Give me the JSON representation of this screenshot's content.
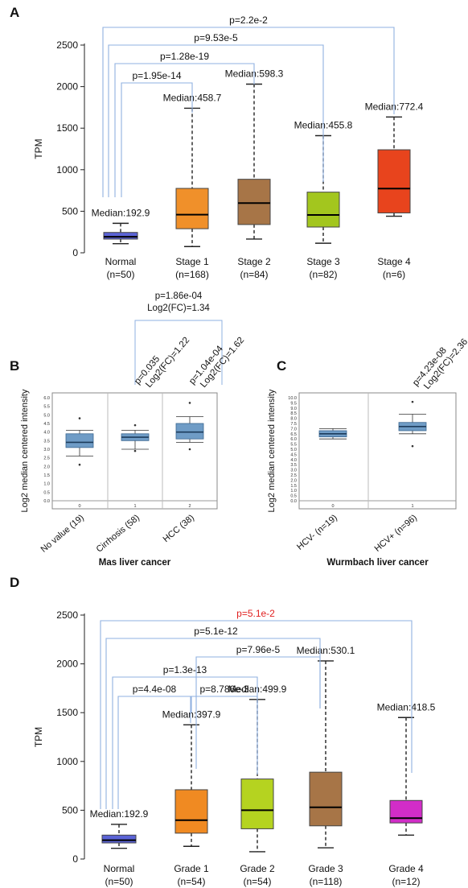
{
  "panels": {
    "A": {
      "letter": "A",
      "ylabel": "TPM",
      "yticks": [
        0,
        500,
        1000,
        1500,
        2000,
        2500
      ],
      "ylim": [
        0,
        2500
      ],
      "boxes": [
        {
          "label": "Normal",
          "n": "(n=50)",
          "median_text": "Median:192.9",
          "min": 110,
          "q1": 165,
          "median": 192.9,
          "q3": 245,
          "max": 355,
          "color": "#5b63d6"
        },
        {
          "label": "Stage 1",
          "n": "(n=168)",
          "median_text": "Median:458.7",
          "min": 75,
          "q1": 290,
          "median": 458.7,
          "q3": 775,
          "max": 1740,
          "color": "#f0902a"
        },
        {
          "label": "Stage 2",
          "n": "(n=84)",
          "median_text": "Median:598.3",
          "min": 165,
          "q1": 340,
          "median": 598.3,
          "q3": 885,
          "max": 2030,
          "color": "#a77547"
        },
        {
          "label": "Stage 3",
          "n": "(n=82)",
          "median_text": "Median:455.8",
          "min": 115,
          "q1": 310,
          "median": 455.8,
          "q3": 730,
          "max": 1410,
          "color": "#a3c61e"
        },
        {
          "label": "Stage 4",
          "n": "(n=6)",
          "median_text": "Median:772.4",
          "min": 440,
          "q1": 480,
          "median": 772.4,
          "q3": 1240,
          "max": 1635,
          "color": "#e8441d"
        }
      ],
      "pvalues": [
        {
          "text": "p=2.2e-2",
          "color": "#111111"
        },
        {
          "text": "p=9.53e-5",
          "color": "#111111"
        },
        {
          "text": "p=1.28e-19",
          "color": "#111111"
        },
        {
          "text": "p=1.95e-14",
          "color": "#111111"
        }
      ]
    },
    "B": {
      "letter": "B",
      "ylabel": "Log2 median centered intensity",
      "xtitle": "Mas liver cancer",
      "yticks": [
        "0.0",
        "0.5",
        "1.0",
        "1.5",
        "2.0",
        "2.5",
        "3.0",
        "3.5",
        "4.0",
        "4.5",
        "5.0",
        "5.5",
        "6.0"
      ],
      "groups": [
        {
          "label": "No value (19)",
          "index": "0",
          "min": 2.6,
          "q1": 3.1,
          "median": 3.4,
          "q3": 3.9,
          "max": 4.1,
          "outliers": [
            2.1,
            4.8
          ]
        },
        {
          "label": "Cirrhosis (58)",
          "index": "1",
          "min": 3.0,
          "q1": 3.5,
          "median": 3.7,
          "q3": 3.9,
          "max": 4.1,
          "outliers": [
            4.4,
            2.9
          ]
        },
        {
          "label": "HCC (38)",
          "index": "2",
          "min": 3.4,
          "q1": 3.6,
          "median": 4.0,
          "q3": 4.5,
          "max": 4.9,
          "outliers": [
            5.7,
            3.0
          ]
        }
      ],
      "annotations": {
        "top_p": "p=1.86e-04",
        "top_fc": "Log2(FC)=1.34",
        "cirr_p": "p=0.035",
        "cirr_fc": "Log2(FC)=1.22",
        "hcc_p": "p=1.04e-04",
        "hcc_fc": "Log2(FC)=1.62"
      }
    },
    "C": {
      "letter": "C",
      "ylabel": "Log2 median centered intensity",
      "xtitle": "Wurmbach liver cancer",
      "yticks": [
        "0.0",
        "0.5",
        "1.0",
        "1.5",
        "2.0",
        "2.5",
        "3.0",
        "3.5",
        "4.0",
        "4.5",
        "5.0",
        "5.5",
        "6.0",
        "6.5",
        "7.0",
        "7.5",
        "8.0",
        "8.5",
        "9.0",
        "9.5",
        "10.0"
      ],
      "groups": [
        {
          "label": "HCV- (n=19)",
          "index": "0",
          "min": 6.0,
          "q1": 6.2,
          "median": 6.5,
          "q3": 6.8,
          "max": 7.0,
          "outliers": []
        },
        {
          "label": "HCV+ (n=96)",
          "index": "1",
          "min": 6.5,
          "q1": 6.8,
          "median": 7.2,
          "q3": 7.6,
          "max": 8.4,
          "outliers": [
            9.6,
            5.3
          ]
        }
      ],
      "annotations": {
        "p": "p=4.23e-08",
        "fc": "Log2(FC)=2.36"
      }
    },
    "D": {
      "letter": "D",
      "ylabel": "TPM",
      "yticks": [
        0,
        500,
        1000,
        1500,
        2000,
        2500
      ],
      "ylim": [
        0,
        2500
      ],
      "boxes": [
        {
          "label": "Normal",
          "n": "(n=50)",
          "median_text": "Median:192.9",
          "min": 110,
          "q1": 165,
          "median": 192.9,
          "q3": 245,
          "max": 355,
          "color": "#5b63d6"
        },
        {
          "label": "Grade 1",
          "n": "(n=54)",
          "median_text": "Median:397.9",
          "min": 130,
          "q1": 265,
          "median": 397.9,
          "q3": 710,
          "max": 1375,
          "color": "#f08a22"
        },
        {
          "label": "Grade 2",
          "n": "(n=54)",
          "median_text": "Median:499.9",
          "min": 75,
          "q1": 310,
          "median": 499.9,
          "q3": 820,
          "max": 1635,
          "color": "#b5d320"
        },
        {
          "label": "Grade 3",
          "n": "(n=118)",
          "median_text": "Median:530.1",
          "min": 115,
          "q1": 340,
          "median": 530.1,
          "q3": 890,
          "max": 2030,
          "color": "#a77547"
        },
        {
          "label": "Grade 4",
          "n": "(n=12)",
          "median_text": "Median:418.5",
          "min": 245,
          "q1": 370,
          "median": 418.5,
          "q3": 600,
          "max": 1450,
          "color": "#d22dc8"
        }
      ],
      "pvalues": [
        {
          "text": "p=5.1e-2",
          "color": "#e02020"
        },
        {
          "text": "p=5.1e-12",
          "color": "#111111"
        },
        {
          "text": "p=7.96e-5",
          "color": "#111111"
        },
        {
          "text": "p=1.3e-13",
          "color": "#111111"
        },
        {
          "text": "p=4.4e-08",
          "color": "#111111"
        },
        {
          "text": "p=8.786e-3",
          "color": "#111111"
        }
      ]
    }
  },
  "chart_data": [
    {
      "type": "box",
      "panel": "A",
      "ylabel": "TPM",
      "ylim": [
        0,
        2500
      ],
      "categories": [
        "Normal (n=50)",
        "Stage 1 (n=168)",
        "Stage 2 (n=84)",
        "Stage 3 (n=82)",
        "Stage 4 (n=6)"
      ],
      "medians": [
        192.9,
        458.7,
        598.3,
        455.8,
        772.4
      ],
      "q1": [
        165,
        290,
        340,
        310,
        480
      ],
      "q3": [
        245,
        775,
        885,
        730,
        1240
      ],
      "whisker_low": [
        110,
        75,
        165,
        115,
        440
      ],
      "whisker_high": [
        355,
        1740,
        2030,
        1410,
        1635
      ],
      "comparisons": [
        {
          "a": "Normal",
          "b": "Stage 4",
          "p": "p=2.2e-2"
        },
        {
          "a": "Normal",
          "b": "Stage 3",
          "p": "p=9.53e-5"
        },
        {
          "a": "Normal",
          "b": "Stage 2",
          "p": "p=1.28e-19"
        },
        {
          "a": "Normal",
          "b": "Stage 1",
          "p": "p=1.95e-14"
        }
      ]
    },
    {
      "type": "box",
      "panel": "B",
      "title": "Mas liver cancer",
      "ylabel": "Log2 median centered intensity",
      "ylim": [
        0,
        6
      ],
      "categories": [
        "No value (19)",
        "Cirrhosis (58)",
        "HCC (38)"
      ],
      "medians": [
        3.4,
        3.7,
        4.0
      ],
      "q1": [
        3.1,
        3.5,
        3.6
      ],
      "q3": [
        3.9,
        3.9,
        4.5
      ],
      "whisker_low": [
        2.6,
        3.0,
        3.4
      ],
      "whisker_high": [
        4.1,
        4.1,
        4.9
      ]
    },
    {
      "type": "box",
      "panel": "C",
      "title": "Wurmbach liver cancer",
      "ylabel": "Log2 median centered intensity",
      "ylim": [
        0,
        10
      ],
      "categories": [
        "HCV- (n=19)",
        "HCV+ (n=96)"
      ],
      "medians": [
        6.5,
        7.2
      ],
      "q1": [
        6.2,
        6.8
      ],
      "q3": [
        6.8,
        7.6
      ],
      "whisker_low": [
        6.0,
        6.5
      ],
      "whisker_high": [
        7.0,
        8.4
      ]
    },
    {
      "type": "box",
      "panel": "D",
      "ylabel": "TPM",
      "ylim": [
        0,
        2500
      ],
      "categories": [
        "Normal (n=50)",
        "Grade 1 (n=54)",
        "Grade 2 (n=54)",
        "Grade 3 (n=118)",
        "Grade 4 (n=12)"
      ],
      "medians": [
        192.9,
        397.9,
        499.9,
        530.1,
        418.5
      ],
      "q1": [
        165,
        265,
        310,
        340,
        370
      ],
      "q3": [
        245,
        710,
        820,
        890,
        600
      ],
      "whisker_low": [
        110,
        130,
        75,
        115,
        245
      ],
      "whisker_high": [
        355,
        1375,
        1635,
        2030,
        1450
      ],
      "comparisons": [
        {
          "a": "Normal",
          "b": "Grade 4",
          "p": "p=5.1e-2"
        },
        {
          "a": "Normal",
          "b": "Grade 3",
          "p": "p=5.1e-12"
        },
        {
          "a": "Grade 1",
          "b": "Grade 3",
          "p": "p=7.96e-5"
        },
        {
          "a": "Normal",
          "b": "Grade 2",
          "p": "p=1.3e-13"
        },
        {
          "a": "Normal",
          "b": "Grade 1",
          "p": "p=4.4e-08"
        },
        {
          "a": "Grade 1",
          "b": "Grade 2",
          "p": "p=8.786e-3"
        }
      ]
    }
  ]
}
